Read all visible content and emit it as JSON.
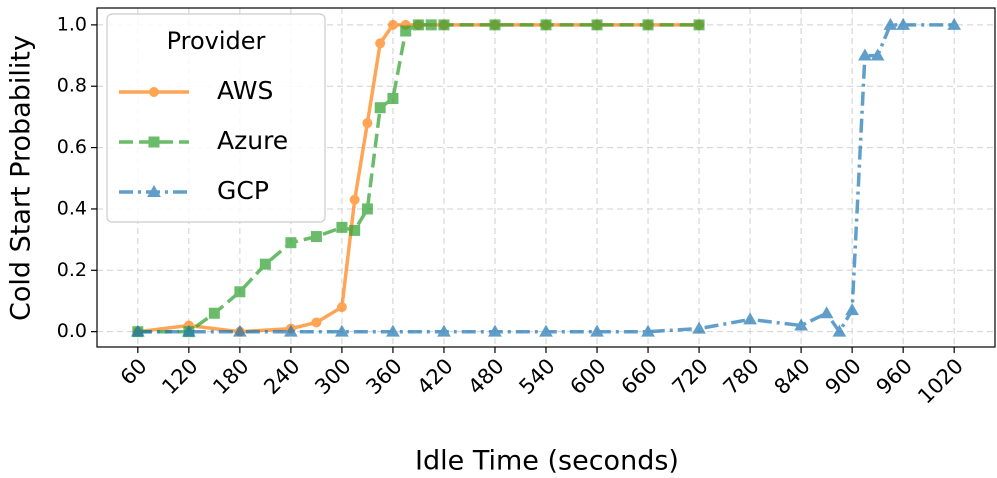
{
  "chart_data": {
    "type": "line",
    "x_label": "Idle Time (seconds)",
    "y_label": "Cold Start Probability",
    "legend_title": "Provider",
    "legend": "upper left",
    "grid": true,
    "xlim": [
      12,
      1068
    ],
    "ylim": [
      -0.05,
      1.055
    ],
    "xticks": [
      60,
      120,
      180,
      240,
      300,
      360,
      420,
      480,
      540,
      600,
      660,
      720,
      780,
      840,
      900,
      960,
      1020
    ],
    "yticks": [
      {
        "value": 0,
        "label": "0.0"
      },
      0.2,
      0.4,
      0.6,
      0.8,
      {
        "value": 1,
        "label": "1.0"
      }
    ],
    "series": [
      {
        "name": "AWS",
        "color": "#ff7f0e",
        "marker": "circle",
        "linestyle": "solid",
        "x": [
          60,
          120,
          180,
          240,
          270,
          300,
          315,
          330,
          345,
          360,
          375,
          390,
          420,
          480,
          540,
          600,
          660,
          720
        ],
        "values": [
          0,
          0.02,
          0,
          0.01,
          0.03,
          0.08,
          0.43,
          0.68,
          0.94,
          1,
          1,
          1,
          1,
          1,
          1,
          1,
          1,
          1
        ]
      },
      {
        "name": "Azure",
        "color": "#2ca02c",
        "marker": "square",
        "linestyle": "dashed",
        "x": [
          60,
          120,
          150,
          180,
          210,
          240,
          270,
          300,
          315,
          330,
          345,
          360,
          375,
          390,
          405,
          420,
          480,
          540,
          600,
          660,
          720
        ],
        "values": [
          0,
          0,
          0.06,
          0.13,
          0.22,
          0.29,
          0.31,
          0.34,
          0.33,
          0.4,
          0.73,
          0.76,
          0.98,
          1,
          1,
          1,
          1,
          1,
          1,
          1,
          1
        ]
      },
      {
        "name": "GCP",
        "color": "#1f77b4",
        "marker": "triangle",
        "linestyle": "dashdot",
        "x": [
          60,
          120,
          180,
          240,
          300,
          360,
          420,
          480,
          540,
          600,
          660,
          720,
          780,
          840,
          870,
          885,
          900,
          915,
          930,
          945,
          960,
          1020
        ],
        "values": [
          0,
          0,
          0,
          0,
          0,
          0,
          0,
          0,
          0,
          0,
          0,
          0.01,
          0.04,
          0.02,
          0.06,
          0,
          0.07,
          0.9,
          0.9,
          1,
          1,
          1
        ]
      }
    ]
  }
}
